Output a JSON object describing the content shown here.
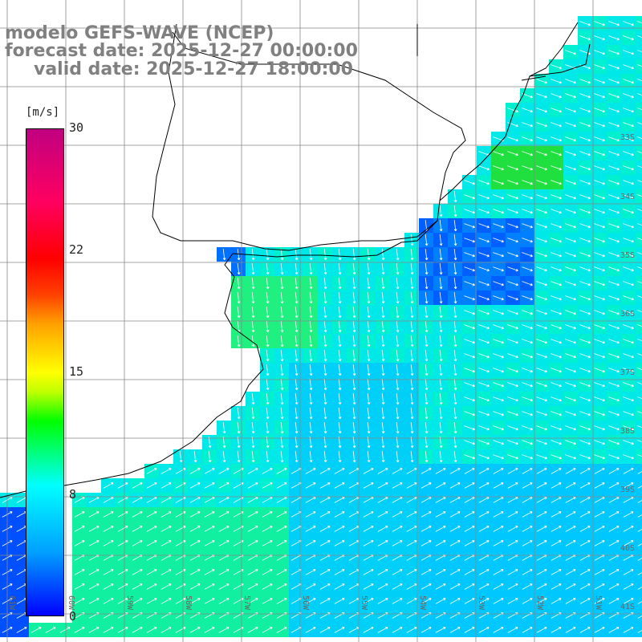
{
  "title": {
    "line1": "modelo GEFS-WAVE (NCEP)",
    "line2": "forecast date: 2025-12-27 00:00:00",
    "line3": "valid date: 2025-12-27 18:00:00"
  },
  "colorbar": {
    "unit": "[m/s]",
    "ticks": [
      "30",
      "22",
      "15",
      "8",
      "0"
    ],
    "colors": [
      "#0000ff",
      "#00a0ff",
      "#00ffff",
      "#00ff00",
      "#ffff00",
      "#ff0000",
      "#c00080"
    ]
  },
  "lat_labels": [
    "33S",
    "34S",
    "35S",
    "36S",
    "37S",
    "38S",
    "39S",
    "40S",
    "41S"
  ],
  "lon_labels": [
    "61W",
    "60W",
    "59W",
    "58W",
    "57W",
    "56W",
    "55W",
    "54W",
    "53W",
    "52W",
    "51W"
  ]
}
